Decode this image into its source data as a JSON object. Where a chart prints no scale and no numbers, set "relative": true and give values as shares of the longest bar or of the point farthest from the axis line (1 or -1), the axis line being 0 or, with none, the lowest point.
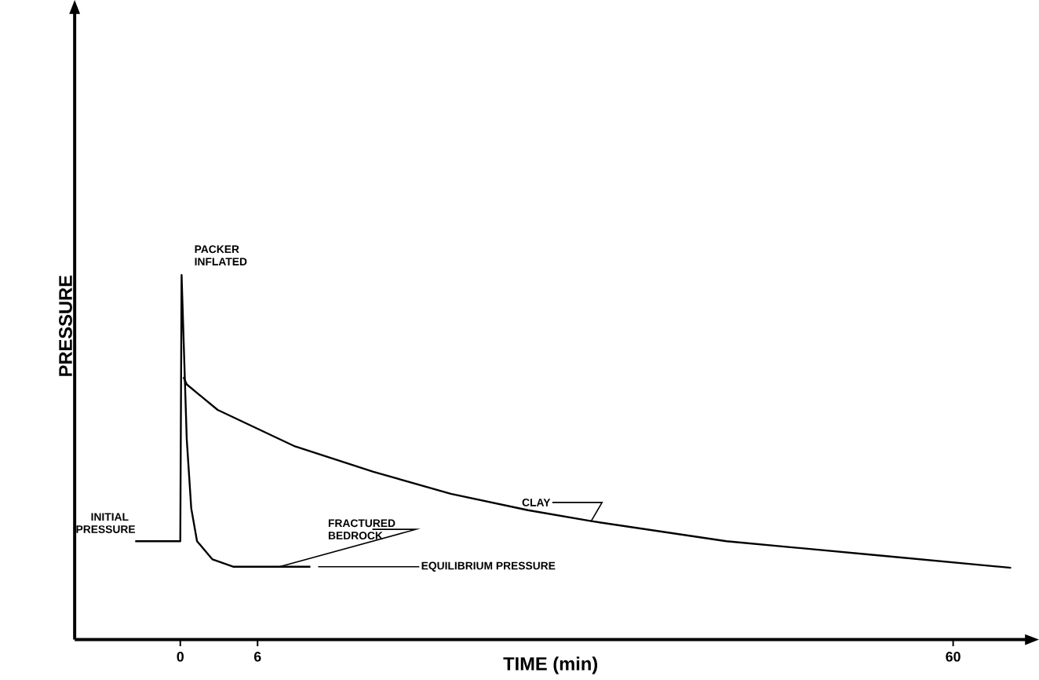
{
  "chart_data": {
    "type": "line",
    "relative": true,
    "xlabel": "TIME (min)",
    "ylabel": "PRESSURE",
    "xlim": [
      -8.2,
      65.7
    ],
    "xticks": [
      0,
      6,
      60
    ],
    "marker": "none",
    "line_style": "solid",
    "grid": false,
    "series": [
      {
        "color": "#000000",
        "x": [
          -3.5,
          0,
          0.1,
          0.5,
          0.85,
          1.3,
          2.5,
          4.1,
          10.1
        ],
        "values": [
          0.27,
          0.27,
          1.0,
          0.55,
          0.36,
          0.27,
          0.22,
          0.2,
          0.2
        ]
      },
      {
        "color": "#000000",
        "x": [
          0.25,
          0.5,
          2.9,
          8.9,
          15,
          21,
          27,
          31.9,
          42.4,
          54.5,
          64.5
        ],
        "values": [
          0.72,
          0.7,
          0.63,
          0.53,
          0.46,
          0.4,
          0.355,
          0.325,
          0.27,
          0.23,
          0.197
        ]
      }
    ],
    "annotations": [
      {
        "text": "PACKER INFLATED",
        "x": 0.1,
        "y": 1.0
      },
      {
        "text": "INITIAL PRESSURE",
        "x": -3.5,
        "y": 0.27
      },
      {
        "text": "FRACTURED BEDROCK",
        "x": 7.7,
        "y": 0.2
      },
      {
        "text": "CLAY",
        "x": 31.9,
        "y": 0.325
      },
      {
        "text": "EQUILIBRIUM PRESSURE",
        "x": 10.1,
        "y": 0.2
      }
    ]
  }
}
